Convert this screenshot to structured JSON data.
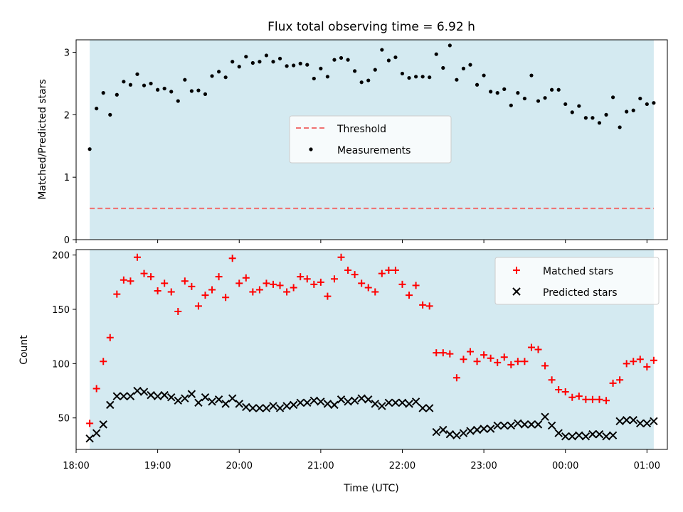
{
  "chart_data": [
    {
      "type": "scatter",
      "title": "Flux total observing time = 6.92 h",
      "xlabel": "",
      "ylabel": "Matched/Predicted stars",
      "xlim": [
        "18:00",
        "01:15"
      ],
      "ylim": [
        0,
        3.2
      ],
      "yticks": [
        0,
        1,
        2,
        3
      ],
      "shaded_span": [
        "18:10",
        "01:05"
      ],
      "shade_color": "#d4eaf1",
      "legend_position": "center-right",
      "threshold": {
        "name": "Threshold",
        "value": 0.5,
        "color": "#f07070",
        "style": "dashed"
      },
      "series": [
        {
          "name": "Measurements",
          "marker": "dot",
          "color": "#000000",
          "x": [
            "18:10",
            "18:15",
            "18:20",
            "18:25",
            "18:30",
            "18:35",
            "18:40",
            "18:45",
            "18:50",
            "18:55",
            "19:00",
            "19:05",
            "19:10",
            "19:15",
            "19:20",
            "19:25",
            "19:30",
            "19:35",
            "19:40",
            "19:45",
            "19:50",
            "19:55",
            "20:00",
            "20:05",
            "20:10",
            "20:15",
            "20:20",
            "20:25",
            "20:30",
            "20:35",
            "20:40",
            "20:45",
            "20:50",
            "20:55",
            "21:00",
            "21:05",
            "21:10",
            "21:15",
            "21:20",
            "21:25",
            "21:30",
            "21:35",
            "21:40",
            "21:45",
            "21:50",
            "21:55",
            "22:00",
            "22:05",
            "22:10",
            "22:15",
            "22:20",
            "22:25",
            "22:30",
            "22:35",
            "22:40",
            "22:45",
            "22:50",
            "22:55",
            "23:00",
            "23:05",
            "23:10",
            "23:15",
            "23:20",
            "23:25",
            "23:30",
            "23:35",
            "23:40",
            "23:45",
            "23:50",
            "23:55",
            "00:00",
            "00:05",
            "00:10",
            "00:15",
            "00:20",
            "00:25",
            "00:30",
            "00:35",
            "00:40",
            "00:45",
            "00:50",
            "00:55",
            "01:00",
            "01:05"
          ],
          "y": [
            1.45,
            2.1,
            2.35,
            2.0,
            2.32,
            2.53,
            2.48,
            2.65,
            2.47,
            2.5,
            2.4,
            2.42,
            2.37,
            2.22,
            2.56,
            2.38,
            2.39,
            2.33,
            2.62,
            2.69,
            2.6,
            2.85,
            2.77,
            2.93,
            2.83,
            2.85,
            2.95,
            2.85,
            2.9,
            2.78,
            2.79,
            2.82,
            2.8,
            2.58,
            2.74,
            2.61,
            2.88,
            2.91,
            2.88,
            2.7,
            2.52,
            2.55,
            2.72,
            3.04,
            2.87,
            2.92,
            2.66,
            2.59,
            2.61,
            2.61,
            2.6,
            2.97,
            2.75,
            3.11,
            2.56,
            2.74,
            2.8,
            2.48,
            2.63,
            2.37,
            2.35,
            2.41,
            2.15,
            2.35,
            2.26,
            2.63,
            2.22,
            2.27,
            2.4,
            2.4,
            2.17,
            2.04,
            2.14,
            1.95,
            1.95,
            1.87,
            2.0,
            2.28,
            1.8,
            2.05,
            2.07,
            2.26,
            2.17,
            2.19
          ]
        }
      ]
    },
    {
      "type": "scatter",
      "title": "",
      "xlabel": "Time (UTC)",
      "ylabel": "Count",
      "xlim": [
        "18:00",
        "01:15"
      ],
      "ylim": [
        21,
        205
      ],
      "yticks": [
        50,
        100,
        150,
        200
      ],
      "xticks": [
        "18:00",
        "19:00",
        "20:00",
        "21:00",
        "22:00",
        "23:00",
        "00:00",
        "01:00"
      ],
      "shaded_span": [
        "18:10",
        "01:05"
      ],
      "shade_color": "#d4eaf1",
      "legend_position": "top-right",
      "series": [
        {
          "name": "Matched stars",
          "marker": "plus",
          "color": "#ff0000",
          "x": [
            "18:10",
            "18:15",
            "18:20",
            "18:25",
            "18:30",
            "18:35",
            "18:40",
            "18:45",
            "18:50",
            "18:55",
            "19:00",
            "19:05",
            "19:10",
            "19:15",
            "19:20",
            "19:25",
            "19:30",
            "19:35",
            "19:40",
            "19:45",
            "19:50",
            "19:55",
            "20:00",
            "20:05",
            "20:10",
            "20:15",
            "20:20",
            "20:25",
            "20:30",
            "20:35",
            "20:40",
            "20:45",
            "20:50",
            "20:55",
            "21:00",
            "21:05",
            "21:10",
            "21:15",
            "21:20",
            "21:25",
            "21:30",
            "21:35",
            "21:40",
            "21:45",
            "21:50",
            "21:55",
            "22:00",
            "22:05",
            "22:10",
            "22:15",
            "22:20",
            "22:25",
            "22:30",
            "22:35",
            "22:40",
            "22:45",
            "22:50",
            "22:55",
            "23:00",
            "23:05",
            "23:10",
            "23:15",
            "23:20",
            "23:25",
            "23:30",
            "23:35",
            "23:40",
            "23:45",
            "23:50",
            "23:55",
            "00:00",
            "00:05",
            "00:10",
            "00:15",
            "00:20",
            "00:25",
            "00:30",
            "00:35",
            "00:40",
            "00:45",
            "00:50",
            "00:55",
            "01:00",
            "01:05"
          ],
          "y": [
            45,
            77,
            102,
            124,
            164,
            177,
            176,
            198,
            183,
            180,
            167,
            174,
            166,
            148,
            176,
            171,
            153,
            163,
            168,
            180,
            161,
            197,
            174,
            179,
            166,
            168,
            174,
            173,
            172,
            166,
            170,
            180,
            178,
            173,
            175,
            162,
            178,
            198,
            186,
            182,
            174,
            170,
            166,
            183,
            186,
            186,
            173,
            163,
            172,
            154,
            153,
            110,
            110,
            109,
            87,
            104,
            111,
            102,
            108,
            105,
            101,
            106,
            99,
            102,
            102,
            115,
            113,
            98,
            85,
            76,
            74,
            69,
            70,
            67,
            67,
            67,
            66,
            82,
            85,
            100,
            102,
            104,
            97,
            103
          ]
        },
        {
          "name": "Predicted stars",
          "marker": "x",
          "color": "#000000",
          "x": [
            "18:10",
            "18:15",
            "18:20",
            "18:25",
            "18:30",
            "18:35",
            "18:40",
            "18:45",
            "18:50",
            "18:55",
            "19:00",
            "19:05",
            "19:10",
            "19:15",
            "19:20",
            "19:25",
            "19:30",
            "19:35",
            "19:40",
            "19:45",
            "19:50",
            "19:55",
            "20:00",
            "20:05",
            "20:10",
            "20:15",
            "20:20",
            "20:25",
            "20:30",
            "20:35",
            "20:40",
            "20:45",
            "20:50",
            "20:55",
            "21:00",
            "21:05",
            "21:10",
            "21:15",
            "21:20",
            "21:25",
            "21:30",
            "21:35",
            "21:40",
            "21:45",
            "21:50",
            "21:55",
            "22:00",
            "22:05",
            "22:10",
            "22:15",
            "22:20",
            "22:25",
            "22:30",
            "22:35",
            "22:40",
            "22:45",
            "22:50",
            "22:55",
            "23:00",
            "23:05",
            "23:10",
            "23:15",
            "23:20",
            "23:25",
            "23:30",
            "23:35",
            "23:40",
            "23:45",
            "23:50",
            "23:55",
            "00:00",
            "00:05",
            "00:10",
            "00:15",
            "00:20",
            "00:25",
            "00:30",
            "00:35",
            "00:40",
            "00:45",
            "00:50",
            "00:55",
            "01:00",
            "01:05"
          ],
          "y": [
            31,
            36,
            44,
            62,
            70,
            70,
            70,
            75,
            74,
            71,
            70,
            71,
            69,
            66,
            68,
            72,
            64,
            69,
            65,
            67,
            63,
            68,
            63,
            60,
            59,
            59,
            59,
            61,
            59,
            61,
            62,
            64,
            64,
            66,
            65,
            63,
            62,
            67,
            65,
            66,
            68,
            67,
            63,
            61,
            64,
            64,
            64,
            63,
            65,
            59,
            59,
            37,
            39,
            35,
            34,
            36,
            38,
            39,
            40,
            40,
            43,
            43,
            43,
            45,
            44,
            44,
            44,
            51,
            43,
            36,
            33,
            33,
            34,
            33,
            35,
            35,
            33,
            34,
            47,
            48,
            48,
            45,
            45,
            47
          ]
        }
      ]
    }
  ]
}
